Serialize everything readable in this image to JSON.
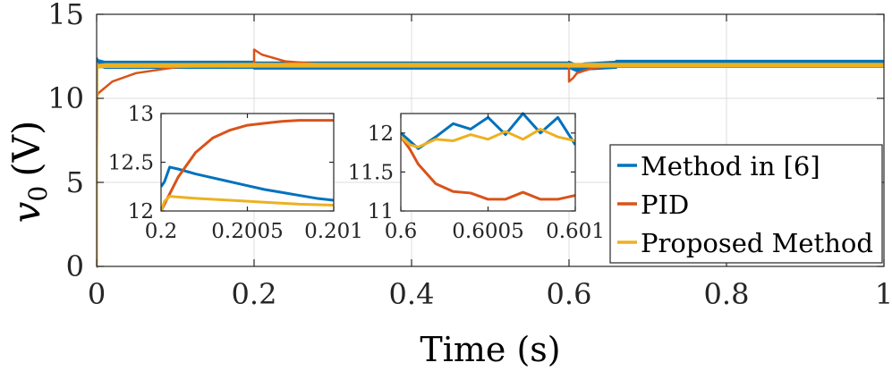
{
  "colors": {
    "method6": "#0072BD",
    "pid": "#D95319",
    "proposed": "#EDB120",
    "grid": "#dcdcdc"
  },
  "chart_data": [
    {
      "id": "main",
      "type": "line",
      "xlabel": "Time (s)",
      "ylabel_main": "v",
      "ylabel_sub": "0",
      "ylabel_unit": "(V)",
      "xlim": [
        0,
        1
      ],
      "ylim": [
        0,
        15
      ],
      "xticks": [
        0,
        0.2,
        0.4,
        0.6,
        0.8,
        1
      ],
      "xtick_labels": [
        "0",
        "0.2",
        "0.4",
        "0.6",
        "0.8",
        "1"
      ],
      "yticks": [
        0,
        5,
        10,
        15
      ],
      "ytick_labels": [
        "0",
        "5",
        "10",
        "15"
      ],
      "grid": true,
      "legend_position": "right",
      "series": [
        {
          "key": "method6",
          "name": "Method in [6]",
          "x": [
            0,
            0.0005,
            0.001,
            0.01,
            0.2,
            0.2,
            0.33,
            0.33,
            0.5,
            0.5,
            0.6,
            0.6,
            0.61,
            0.62,
            0.66,
            0.66,
            1.0
          ],
          "y": [
            0,
            12.2,
            12.1,
            12.0,
            12.0,
            11.95,
            11.95,
            11.95,
            11.95,
            11.95,
            11.95,
            12.0,
            11.8,
            11.9,
            12.0,
            12.05,
            12.05
          ],
          "band": 0.35
        },
        {
          "key": "pid",
          "name": "PID",
          "x": [
            0,
            0.0005,
            0.002,
            0.02,
            0.05,
            0.1,
            0.15,
            0.2,
            0.2,
            0.21,
            0.24,
            0.28,
            0.33,
            0.6,
            0.6,
            0.605,
            0.61,
            0.63,
            0.66,
            1.0
          ],
          "y": [
            0,
            10.1,
            10.3,
            11.0,
            11.5,
            11.85,
            11.95,
            12.0,
            12.9,
            12.6,
            12.2,
            12.05,
            12.0,
            12.0,
            11.0,
            11.2,
            11.5,
            11.8,
            11.95,
            12.0
          ],
          "band": 0.0
        },
        {
          "key": "proposed",
          "name": "Proposed Method",
          "x": [
            0,
            0.0005,
            0.001,
            0.01,
            0.2,
            0.33,
            0.6,
            0.66,
            1.0
          ],
          "y": [
            0,
            12.0,
            11.9,
            11.95,
            11.97,
            11.97,
            11.97,
            11.97,
            11.97
          ],
          "band": 0.15
        }
      ]
    },
    {
      "id": "inset1",
      "type": "line",
      "xlim": [
        0.2,
        0.201
      ],
      "ylim": [
        12,
        13
      ],
      "xticks": [
        0.2,
        0.2005,
        0.201
      ],
      "xtick_labels": [
        "0.2",
        "0.2005",
        "0.201"
      ],
      "yticks": [
        12,
        12.5,
        13
      ],
      "ytick_labels": [
        "12",
        "12.5",
        "13"
      ],
      "series": [
        {
          "key": "method6",
          "x": [
            0.2,
            0.20002,
            0.20005,
            0.2001,
            0.2002,
            0.2003,
            0.2004,
            0.2005,
            0.2006,
            0.2007,
            0.2008,
            0.2009,
            0.201
          ],
          "y": [
            12.25,
            12.3,
            12.45,
            12.43,
            12.38,
            12.34,
            12.3,
            12.26,
            12.22,
            12.19,
            12.16,
            12.13,
            12.11
          ]
        },
        {
          "key": "pid",
          "x": [
            0.2,
            0.2001,
            0.2002,
            0.2003,
            0.2004,
            0.2005,
            0.2006,
            0.2007,
            0.2008,
            0.2009,
            0.201
          ],
          "y": [
            12.0,
            12.35,
            12.6,
            12.75,
            12.83,
            12.88,
            12.9,
            12.92,
            12.93,
            12.93,
            12.93
          ]
        },
        {
          "key": "proposed",
          "x": [
            0.2,
            0.20002,
            0.20005,
            0.2002,
            0.2004,
            0.2006,
            0.2008,
            0.201
          ],
          "y": [
            12.0,
            12.1,
            12.15,
            12.13,
            12.11,
            12.09,
            12.07,
            12.06
          ]
        }
      ]
    },
    {
      "id": "inset2",
      "type": "line",
      "xlim": [
        0.6,
        0.601
      ],
      "ylim": [
        11,
        12.25
      ],
      "xticks": [
        0.6,
        0.6005,
        0.601
      ],
      "xtick_labels": [
        "0.6",
        "0.6005",
        "0.601"
      ],
      "yticks": [
        11,
        11.5,
        12
      ],
      "ytick_labels": [
        "11",
        "11.5",
        "12"
      ],
      "series": [
        {
          "key": "method6",
          "x": [
            0.6,
            0.60005,
            0.6001,
            0.6002,
            0.6003,
            0.6004,
            0.6005,
            0.6006,
            0.6007,
            0.6008,
            0.6009,
            0.601
          ],
          "y": [
            12.0,
            11.9,
            11.8,
            11.95,
            12.12,
            12.05,
            12.2,
            11.98,
            12.25,
            12.0,
            12.2,
            11.85
          ]
        },
        {
          "key": "pid",
          "x": [
            0.6,
            0.60005,
            0.6001,
            0.6002,
            0.6003,
            0.6004,
            0.6005,
            0.6006,
            0.6007,
            0.6008,
            0.6009,
            0.601
          ],
          "y": [
            11.95,
            11.8,
            11.6,
            11.35,
            11.25,
            11.23,
            11.15,
            11.15,
            11.24,
            11.15,
            11.15,
            11.2
          ]
        },
        {
          "key": "proposed",
          "x": [
            0.6,
            0.60005,
            0.6001,
            0.6002,
            0.6003,
            0.6004,
            0.6005,
            0.6006,
            0.6007,
            0.6008,
            0.6009,
            0.601
          ],
          "y": [
            11.95,
            11.85,
            11.82,
            11.92,
            11.9,
            11.98,
            11.92,
            12.02,
            11.92,
            12.05,
            11.95,
            11.9
          ]
        }
      ]
    }
  ]
}
